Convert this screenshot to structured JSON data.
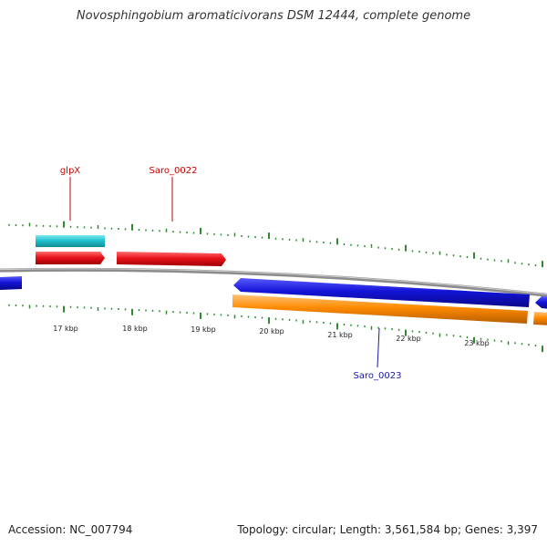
{
  "title": "Novosphingobium aromaticivorans DSM 12444, complete genome",
  "colors": {
    "backbone": "#8c8c8c",
    "tick": "#2f8a2f",
    "forward_cds": "#e8121a",
    "reverse_cds": "#1414d8",
    "gene_cyan": "#22c3cf",
    "orange": "#ff8a00"
  },
  "scale_labels": [
    "17 kbp",
    "18 kbp",
    "19 kbp",
    "20 kbp",
    "21 kbp",
    "22 kbp",
    "23 kbp"
  ],
  "features": [
    {
      "name": "glpX",
      "label_color": "#cc0000"
    },
    {
      "name": "Saro_0022",
      "label_color": "#cc0000"
    },
    {
      "name": "Saro_0023",
      "label_color": "#1a1aa8"
    }
  ],
  "footer": {
    "accession": "Accession: NC_007794",
    "summary": "Topology: circular; Length: 3,561,584 bp; Genes: 3,397"
  }
}
